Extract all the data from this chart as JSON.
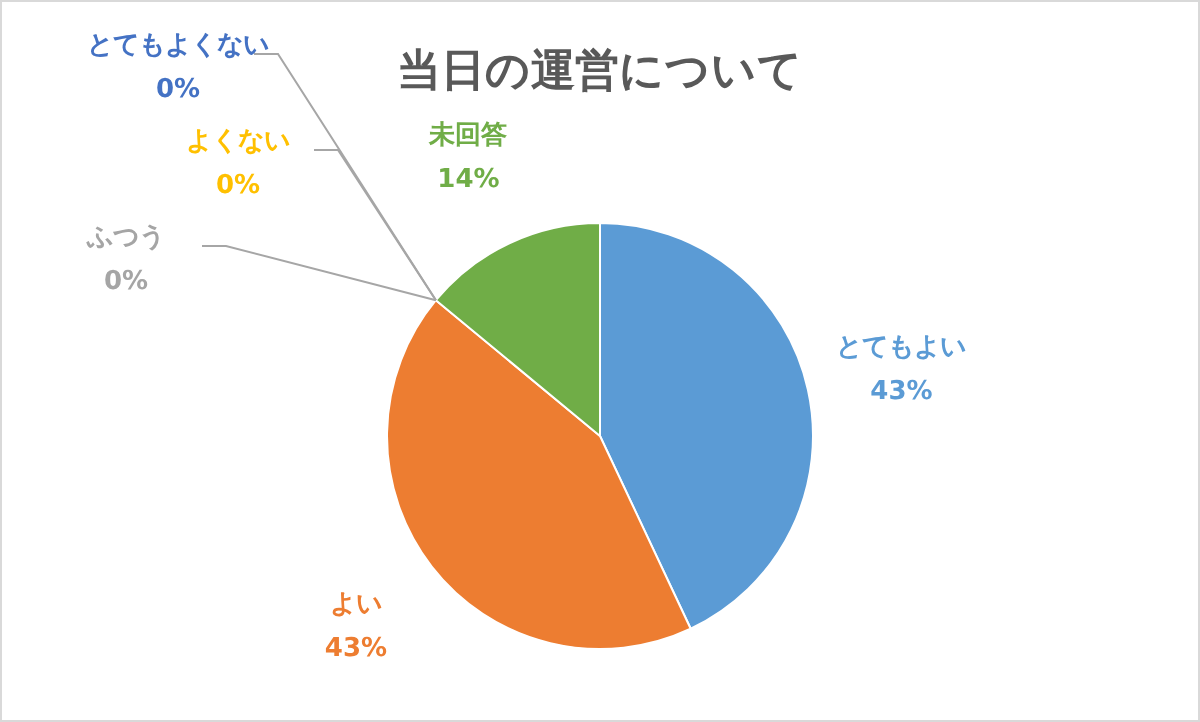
{
  "chart_data": {
    "type": "pie",
    "title": "当日の運営について",
    "categories": [
      "とてもよい",
      "よい",
      "ふつう",
      "よくない",
      "とてもよくない",
      "未回答"
    ],
    "values": [
      43,
      43,
      0,
      0,
      0,
      14
    ],
    "colors": [
      "#5b9bd5",
      "#ed7d31",
      "#a5a5a5",
      "#ffc000",
      "#4472c4",
      "#70ad47"
    ],
    "value_labels": [
      "43%",
      "43%",
      "0%",
      "0%",
      "0%",
      "14%"
    ],
    "legend": false
  }
}
